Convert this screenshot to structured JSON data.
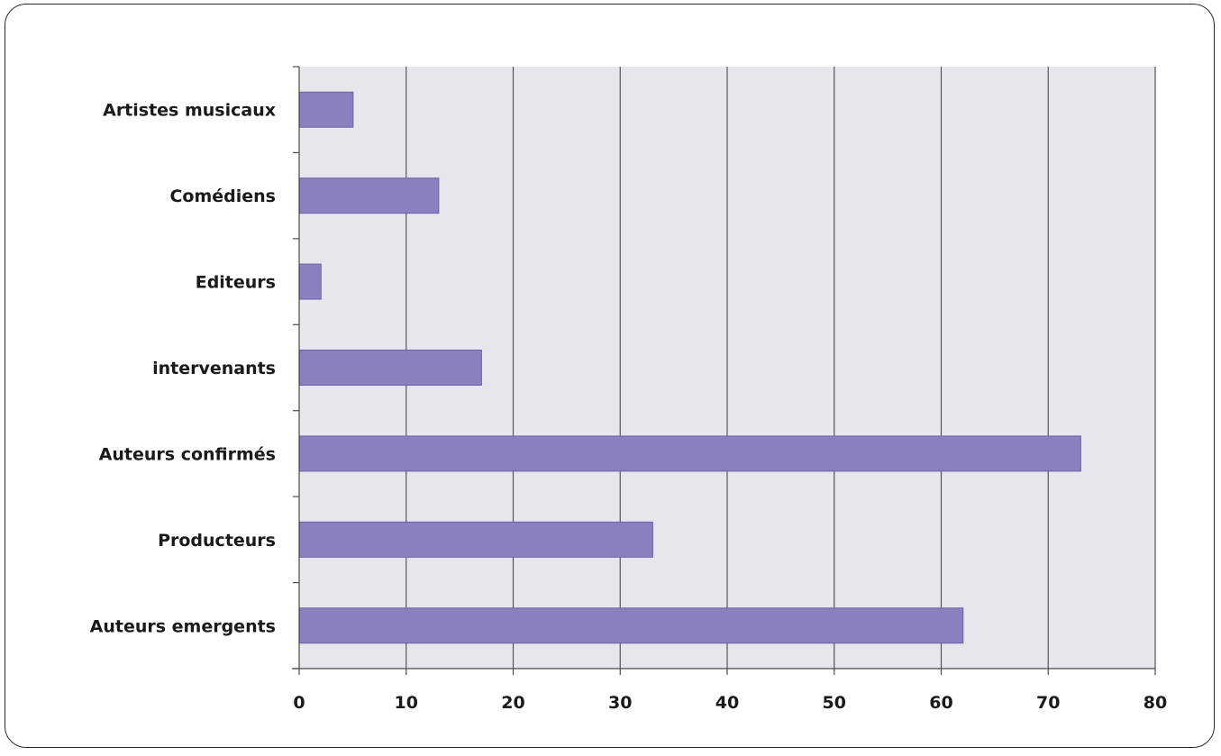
{
  "chart_data": {
    "type": "bar",
    "orientation": "horizontal",
    "title": "",
    "xlabel": "",
    "ylabel": "",
    "categories": [
      "Artistes musicaux",
      "Comédiens",
      "Editeurs",
      "intervenants",
      "Auteurs confirmés",
      "Producteurs",
      "Auteurs emergents"
    ],
    "values": [
      5,
      13,
      2,
      17,
      73,
      33,
      62
    ],
    "xlim": [
      0,
      80
    ],
    "xticks": [
      "0",
      "10",
      "20",
      "30",
      "40",
      "50",
      "60",
      "70",
      "80"
    ],
    "grid": "vertical",
    "legend": "none",
    "colors": {
      "bar": "#8a7fbf",
      "bar_stroke": "#6f63a8",
      "plot_background": "#e6e6ec",
      "grid": "#555555"
    }
  }
}
